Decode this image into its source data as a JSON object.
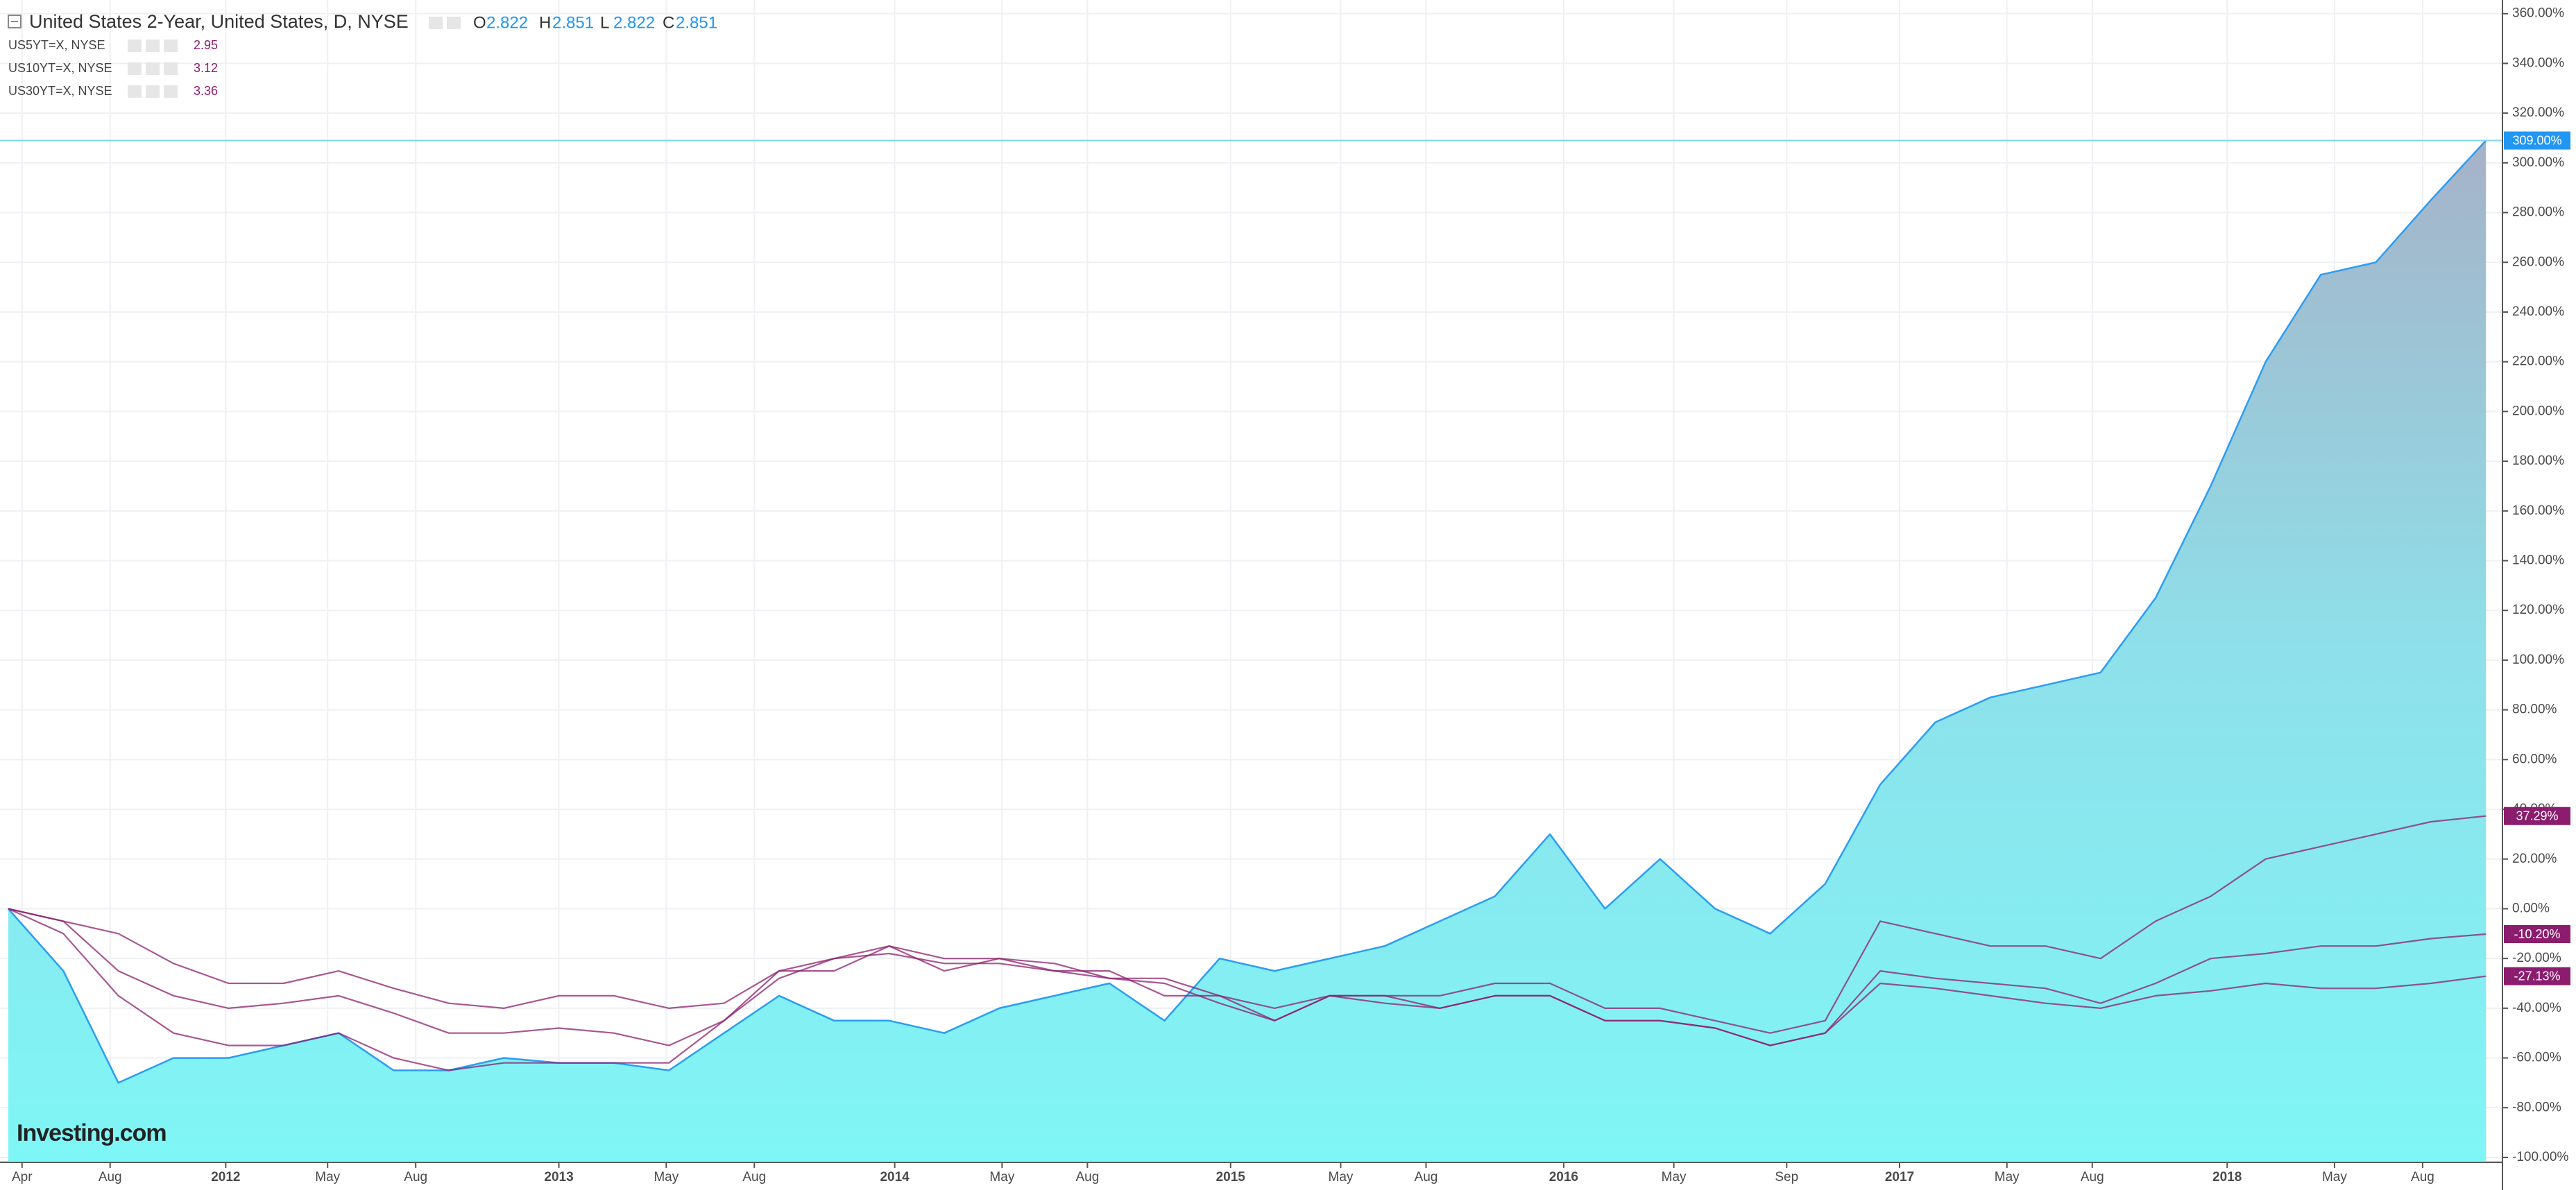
{
  "chart_data": {
    "type": "area-line",
    "ohlc": [
      {
        "label": "O",
        "value": "2.822"
      },
      {
        "label": "H",
        "value": "2.851"
      },
      {
        "label": "L",
        "value": "2.822"
      },
      {
        "label": "C",
        "value": "2.851"
      }
    ],
    "logo": "Investing.com",
    "x": [
      1,
      3,
      5,
      7,
      9,
      11,
      13,
      15,
      17,
      19,
      21,
      23,
      25,
      27,
      29,
      31,
      33,
      35,
      37,
      39,
      41,
      43,
      45,
      47,
      49,
      51,
      53,
      55,
      57,
      59,
      61,
      63,
      65,
      67,
      69,
      71,
      73,
      75,
      77,
      79,
      81,
      83,
      85,
      87,
      89,
      91
    ],
    "series": [
      {
        "name": "United States 2-Year, United States, D, NYSE",
        "color": "#2a9df4",
        "fill": true,
        "last_label": "309.00%",
        "values": [
          0,
          -25,
          -70,
          -60,
          -60,
          -55,
          -50,
          -65,
          -65,
          -60,
          -62,
          -62,
          -65,
          -50,
          -35,
          -45,
          -45,
          -50,
          -40,
          -35,
          -30,
          -45,
          -20,
          -25,
          -20,
          -15,
          -5,
          5,
          30,
          0,
          20,
          0,
          -10,
          10,
          50,
          75,
          85,
          90,
          95,
          125,
          170,
          220,
          255,
          260,
          285,
          309
        ]
      },
      {
        "name": "US5YT=X, NYSE",
        "price": "2.95",
        "color": "#8c1d6e",
        "last_label": "37.29%",
        "values": [
          0,
          -10,
          -35,
          -50,
          -55,
          -55,
          -50,
          -60,
          -65,
          -62,
          -62,
          -62,
          -62,
          -45,
          -25,
          -25,
          -15,
          -25,
          -20,
          -25,
          -25,
          -35,
          -35,
          -40,
          -35,
          -35,
          -35,
          -30,
          -30,
          -40,
          -40,
          -45,
          -50,
          -45,
          -5,
          -10,
          -15,
          -15,
          -20,
          -5,
          5,
          20,
          25,
          30,
          35,
          37.29
        ]
      },
      {
        "name": "US10YT=X, NYSE",
        "price": "3.12",
        "color": "#8c1d6e",
        "last_label": "-10.20%",
        "values": [
          0,
          -5,
          -25,
          -35,
          -40,
          -38,
          -35,
          -42,
          -50,
          -50,
          -48,
          -50,
          -55,
          -45,
          -28,
          -20,
          -18,
          -22,
          -22,
          -25,
          -28,
          -30,
          -38,
          -45,
          -35,
          -35,
          -40,
          -35,
          -35,
          -45,
          -45,
          -48,
          -55,
          -50,
          -25,
          -28,
          -30,
          -32,
          -38,
          -30,
          -20,
          -18,
          -15,
          -15,
          -12,
          -10.2
        ]
      },
      {
        "name": "US30YT=X, NYSE",
        "price": "3.36",
        "color": "#8c1d6e",
        "last_label": "-27.13%",
        "values": [
          0,
          -5,
          -10,
          -22,
          -30,
          -30,
          -25,
          -32,
          -38,
          -40,
          -35,
          -35,
          -40,
          -38,
          -25,
          -20,
          -15,
          -20,
          -20,
          -22,
          -28,
          -28,
          -35,
          -45,
          -35,
          -38,
          -40,
          -35,
          -35,
          -45,
          -45,
          -48,
          -55,
          -50,
          -30,
          -32,
          -35,
          -38,
          -40,
          -35,
          -33,
          -30,
          -32,
          -32,
          -30,
          -27.13
        ]
      }
    ],
    "xlim": [
      0.7,
      91.6
    ],
    "xticks": [
      {
        "value": 1.5,
        "label": "Apr"
      },
      {
        "value": 4.7,
        "label": "Aug"
      },
      {
        "value": 8.9,
        "label": "2012"
      },
      {
        "value": 12.6,
        "label": "May"
      },
      {
        "value": 15.8,
        "label": "Aug"
      },
      {
        "value": 21,
        "label": "2013"
      },
      {
        "value": 24.9,
        "label": "May"
      },
      {
        "value": 28.1,
        "label": "Aug"
      },
      {
        "value": 33.2,
        "label": "2014"
      },
      {
        "value": 37.1,
        "label": "May"
      },
      {
        "value": 40.2,
        "label": "Aug"
      },
      {
        "value": 45.4,
        "label": "2015"
      },
      {
        "value": 49.4,
        "label": "May"
      },
      {
        "value": 52.5,
        "label": "Aug"
      },
      {
        "value": 57.5,
        "label": "2016"
      },
      {
        "value": 61.5,
        "label": "May"
      },
      {
        "value": 65.6,
        "label": "Sep"
      },
      {
        "value": 69.7,
        "label": "2017"
      },
      {
        "value": 73.6,
        "label": "May"
      },
      {
        "value": 76.7,
        "label": "Aug"
      },
      {
        "value": 81.6,
        "label": "2018"
      },
      {
        "value": 85.5,
        "label": "May"
      },
      {
        "value": 88.7,
        "label": "Aug"
      }
    ],
    "ylim": [
      -101.4,
      365.5
    ],
    "yticks": [
      {
        "value": -100,
        "label": "-100.00%"
      },
      {
        "value": -80,
        "label": "-80.00%"
      },
      {
        "value": -60,
        "label": "-60.00%"
      },
      {
        "value": -40,
        "label": "-40.00%"
      },
      {
        "value": -20,
        "label": "-20.00%"
      },
      {
        "value": 0,
        "label": "0.00%"
      },
      {
        "value": 20,
        "label": "20.00%"
      },
      {
        "value": 40,
        "label": "40.00%"
      },
      {
        "value": 60,
        "label": "60.00%"
      },
      {
        "value": 80,
        "label": "80.00%"
      },
      {
        "value": 100,
        "label": "100.00%"
      },
      {
        "value": 120,
        "label": "120.00%"
      },
      {
        "value": 140,
        "label": "140.00%"
      },
      {
        "value": 160,
        "label": "160.00%"
      },
      {
        "value": 180,
        "label": "180.00%"
      },
      {
        "value": 200,
        "label": "200.00%"
      },
      {
        "value": 220,
        "label": "220.00%"
      },
      {
        "value": 240,
        "label": "240.00%"
      },
      {
        "value": 260,
        "label": "260.00%"
      },
      {
        "value": 280,
        "label": "280.00%"
      },
      {
        "value": 300,
        "label": "300.00%"
      },
      {
        "value": 320,
        "label": "320.00%"
      },
      {
        "value": 340,
        "label": "340.00%"
      },
      {
        "value": 360,
        "label": "360.00%"
      }
    ],
    "grid": true
  }
}
